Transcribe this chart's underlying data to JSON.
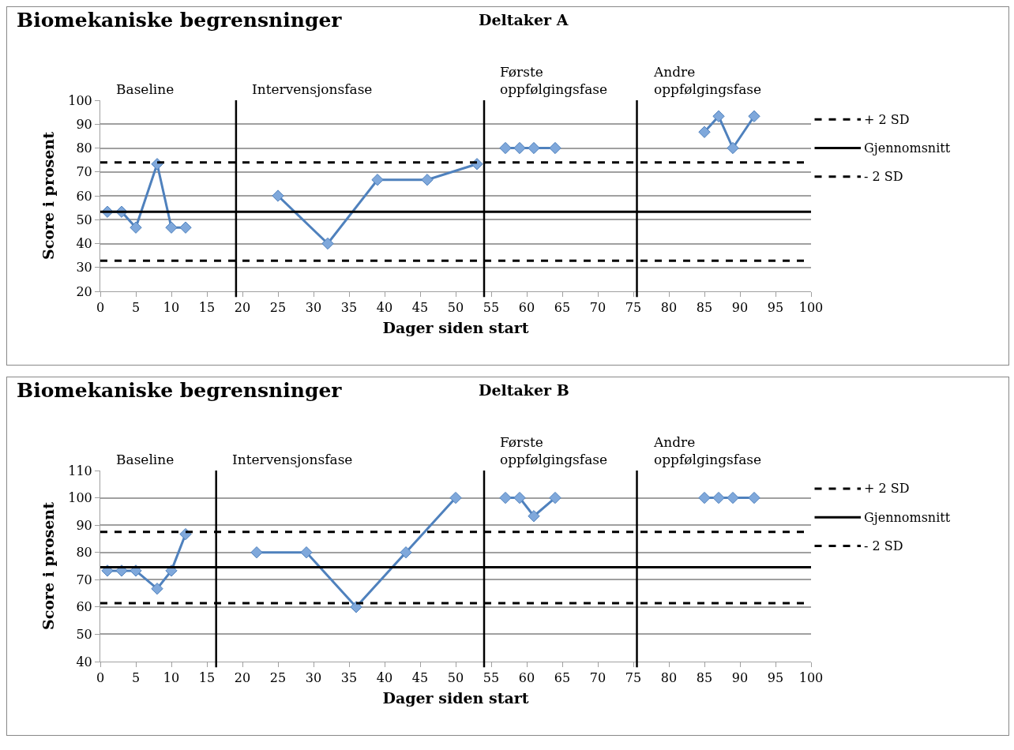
{
  "chart_data": [
    {
      "type": "line",
      "title": "Biomekaniske begrensninger",
      "subtitle": "Deltaker A",
      "xlabel": "Dager siden start",
      "ylabel": "Score i prosent",
      "series": [
        {
          "color": "#4f81bd",
          "x": [
            1,
            3,
            5,
            8,
            10,
            12
          ],
          "values": [
            53.3,
            53.3,
            46.7,
            73.3,
            46.7,
            46.7
          ]
        },
        {
          "color": "#4f81bd",
          "x": [
            25,
            32,
            39,
            46,
            53
          ],
          "values": [
            60,
            40,
            66.7,
            66.7,
            73.3
          ]
        },
        {
          "color": "#4f81bd",
          "x": [
            57,
            59,
            61,
            64
          ],
          "values": [
            80,
            80,
            80,
            80
          ]
        },
        {
          "color": "#4f81bd",
          "x": [
            85,
            87,
            89,
            92
          ],
          "values": [
            86.7,
            93.3,
            80,
            93.3
          ]
        }
      ],
      "xlim": [
        0,
        100
      ],
      "xticks": [
        0,
        5,
        10,
        15,
        20,
        25,
        30,
        35,
        40,
        45,
        50,
        55,
        60,
        65,
        70,
        75,
        80,
        85,
        90,
        95,
        100
      ],
      "ylim": [
        20,
        100
      ],
      "yticks": [
        20,
        30,
        40,
        50,
        60,
        70,
        80,
        90,
        100
      ],
      "ref_lines": [
        {
          "axis": "y",
          "value": 74,
          "label": "+ 2 SD",
          "color": "#000000",
          "line_style": "dashed"
        },
        {
          "axis": "y",
          "value": 53.3,
          "label": "Gjennomsnitt",
          "color": "#000000",
          "line_style": "solid"
        },
        {
          "axis": "y",
          "value": 32.8,
          "label": "- 2 SD",
          "color": "#000000",
          "line_style": "dashed"
        },
        {
          "axis": "x",
          "value": 19.1,
          "color": "#000000",
          "line_style": "solid"
        },
        {
          "axis": "x",
          "value": 54,
          "color": "#000000",
          "line_style": "solid"
        },
        {
          "axis": "x",
          "value": 75.5,
          "color": "#000000",
          "line_style": "solid"
        }
      ],
      "annotations": [
        "Baseline",
        "Intervensjonsfase",
        "Første\noppfølgingsfase",
        "Andre\noppfølgingsfase"
      ],
      "marker": "diamond",
      "line_style": "solid",
      "grid": "y",
      "legend": "right"
    },
    {
      "type": "line",
      "title": "Biomekaniske begrensninger",
      "subtitle": "Deltaker B",
      "xlabel": "Dager siden start",
      "ylabel": "Score i prosent",
      "series": [
        {
          "color": "#4f81bd",
          "x": [
            1,
            3,
            5,
            8,
            10,
            12
          ],
          "values": [
            73.3,
            73.3,
            73.3,
            66.7,
            73.3,
            86.7
          ]
        },
        {
          "color": "#4f81bd",
          "x": [
            22,
            29,
            36,
            43,
            50
          ],
          "values": [
            80,
            80,
            60,
            80,
            100
          ]
        },
        {
          "color": "#4f81bd",
          "x": [
            57,
            59,
            61,
            64
          ],
          "values": [
            100,
            100,
            93.3,
            100
          ]
        },
        {
          "color": "#4f81bd",
          "x": [
            85,
            87,
            89,
            92
          ],
          "values": [
            100,
            100,
            100,
            100
          ]
        }
      ],
      "xlim": [
        0,
        100
      ],
      "xticks": [
        0,
        5,
        10,
        15,
        20,
        25,
        30,
        35,
        40,
        45,
        50,
        55,
        60,
        65,
        70,
        75,
        80,
        85,
        90,
        95,
        100
      ],
      "ylim": [
        40,
        110
      ],
      "yticks": [
        40,
        50,
        60,
        70,
        80,
        90,
        100,
        110
      ],
      "ref_lines": [
        {
          "axis": "y",
          "value": 87.5,
          "label": "+ 2 SD",
          "color": "#000000",
          "line_style": "dashed"
        },
        {
          "axis": "y",
          "value": 74.6,
          "label": "Gjennomsnitt",
          "color": "#000000",
          "line_style": "solid"
        },
        {
          "axis": "y",
          "value": 61.4,
          "label": "- 2 SD",
          "color": "#000000",
          "line_style": "dashed"
        },
        {
          "axis": "x",
          "value": 16.3,
          "color": "#000000",
          "line_style": "solid"
        },
        {
          "axis": "x",
          "value": 54,
          "color": "#000000",
          "line_style": "solid"
        },
        {
          "axis": "x",
          "value": 75.5,
          "color": "#000000",
          "line_style": "solid"
        }
      ],
      "annotations": [
        "Baseline",
        "Intervensjonsfase",
        "Første\noppfølgingsfase",
        "Andre\noppfølgingsfase"
      ],
      "marker": "diamond",
      "line_style": "solid",
      "grid": "y",
      "legend": "right"
    }
  ]
}
